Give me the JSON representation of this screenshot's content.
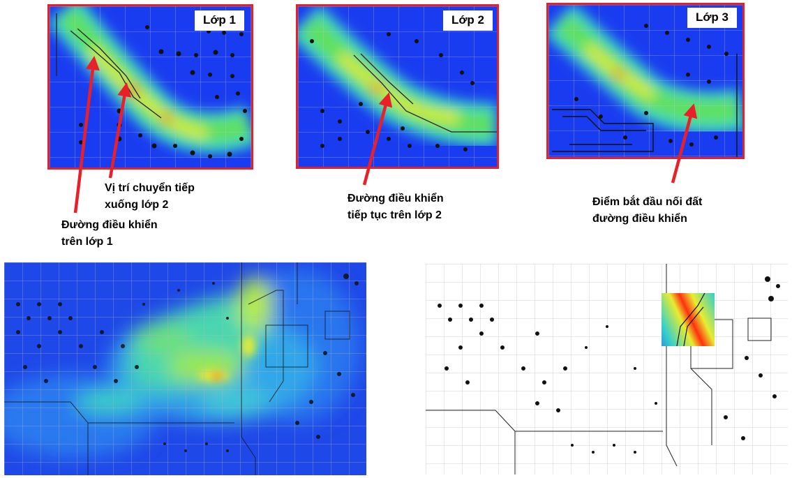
{
  "panels": [
    {
      "label": "Lớp 1"
    },
    {
      "label": "Lớp 2"
    },
    {
      "label": "Lớp 3"
    }
  ],
  "captions": {
    "via_transition": [
      "Vị trí chuyển tiếp",
      "xuống lớp 2"
    ],
    "trace_layer1": [
      "Đường điều khiển",
      "trên lớp 1"
    ],
    "trace_layer2": [
      "Đường điều khiển",
      "tiếp tục trên lớp 2"
    ],
    "ground_start": [
      "Điểm bắt đầu nối đất",
      "đường điều khiển"
    ]
  },
  "colors": {
    "frame": "#e2222a",
    "arrow": "#e8202a",
    "heat_low": "#1a3cf0",
    "heat_mid": "#3fe07a",
    "heat_high": "#e8f020",
    "heat_peak": "#ff2a10"
  }
}
